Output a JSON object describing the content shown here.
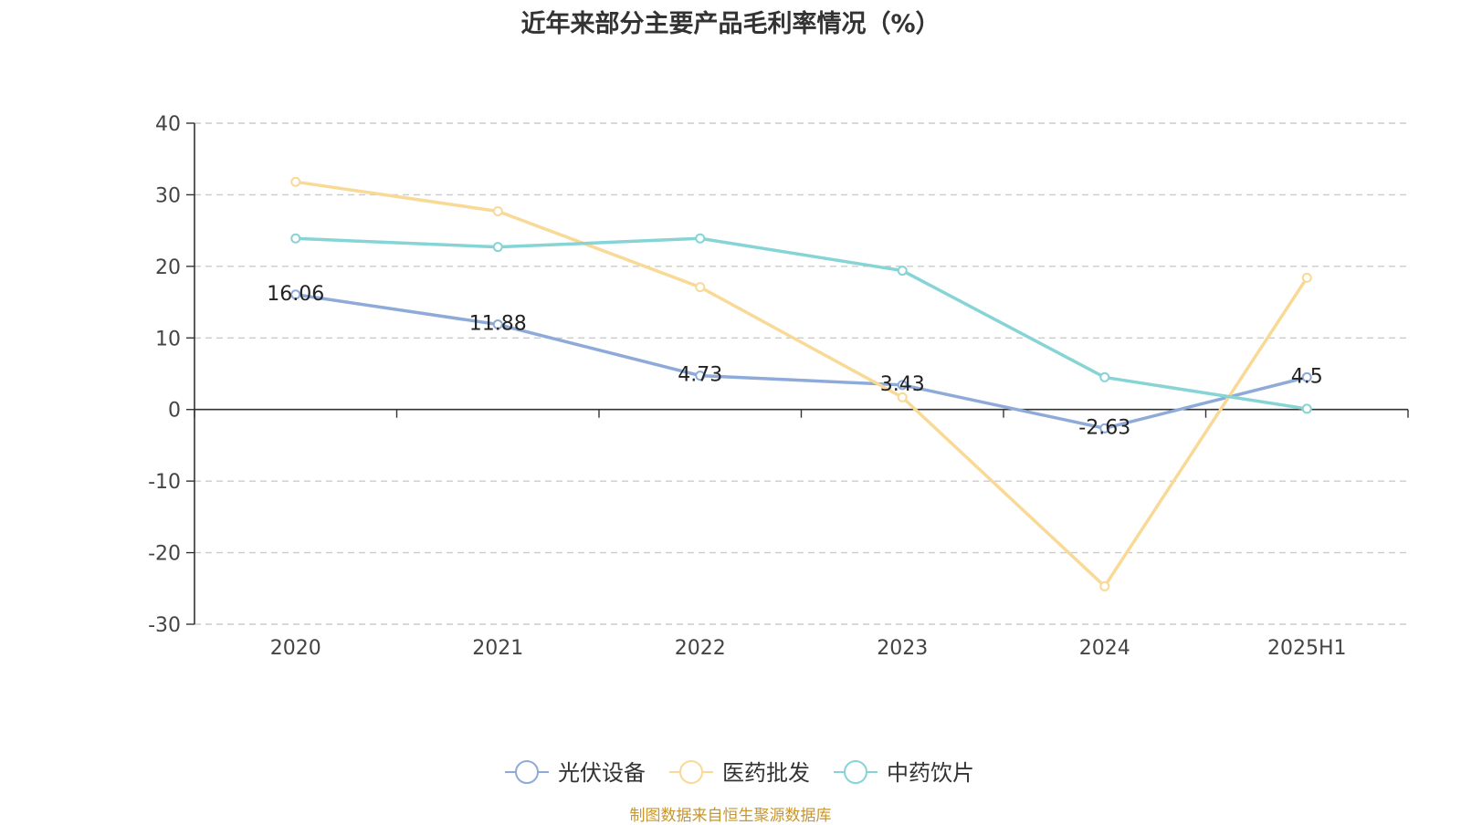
{
  "chart_data": {
    "type": "line",
    "title": "近年来部分主要产品毛利率情况（%）",
    "categories": [
      "2020",
      "2021",
      "2022",
      "2023",
      "2024",
      "2025H1"
    ],
    "ylim": [
      -30,
      40
    ],
    "yticks": [
      -30,
      -20,
      -10,
      0,
      10,
      20,
      30,
      40
    ],
    "grid": true,
    "legend_position": "bottom-center",
    "series": [
      {
        "name": "光伏设备",
        "color": "#8eaad8",
        "values": [
          16.06,
          11.88,
          4.73,
          3.43,
          -2.63,
          4.5
        ],
        "labels": [
          "16.06",
          "11.88",
          "4.73",
          "3.43",
          "-2.63",
          "4.5"
        ]
      },
      {
        "name": "医药批发",
        "color": "#f9d996",
        "values": [
          31.8,
          27.7,
          17.1,
          1.7,
          -24.7,
          18.4
        ]
      },
      {
        "name": "中药饮片",
        "color": "#86d4d6",
        "values": [
          23.9,
          22.7,
          23.9,
          19.4,
          4.5,
          0.1
        ]
      }
    ]
  },
  "source": "制图数据来自恒生聚源数据库"
}
